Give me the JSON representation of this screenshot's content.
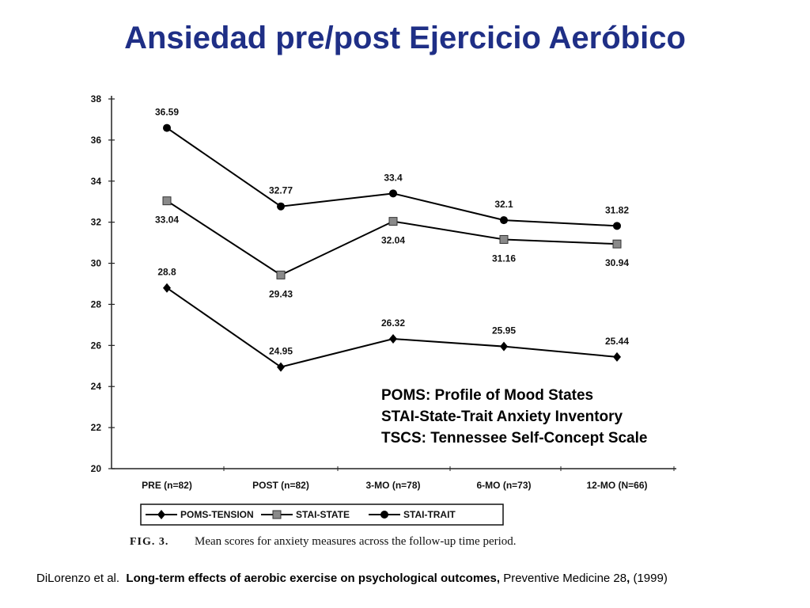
{
  "title": "Ansiedad pre/post Ejercicio Aeróbico",
  "chart_data": {
    "type": "line",
    "categories": [
      "PRE (n=82)",
      "POST (n=82)",
      "3-MO (n=78)",
      "6-MO (n=73)",
      "12-MO (N=66)"
    ],
    "series": [
      {
        "name": "POMS-TENSION",
        "values": [
          28.8,
          24.95,
          26.32,
          25.95,
          25.44
        ],
        "labels": [
          "28.8",
          "24.95",
          "26.32",
          "25.95",
          "25.44"
        ],
        "marker": "diamond"
      },
      {
        "name": "STAI-STATE",
        "values": [
          33.04,
          29.43,
          32.04,
          31.16,
          30.94
        ],
        "labels": [
          "33.04",
          "29.43",
          "32.04",
          "31.16",
          "30.94"
        ],
        "marker": "square"
      },
      {
        "name": "STAI-TRAIT",
        "values": [
          36.59,
          32.77,
          33.4,
          32.1,
          31.82
        ],
        "labels": [
          "36.59",
          "32.77",
          "33.4",
          "32.1",
          "31.82"
        ],
        "marker": "circle"
      }
    ],
    "ylim": [
      20,
      38
    ],
    "yticks": [
      "20",
      "22",
      "24",
      "26",
      "28",
      "30",
      "32",
      "34",
      "36",
      "38"
    ],
    "legend_position": "bottom",
    "caption_label": "FIG. 3.",
    "caption_text": "Mean scores for anxiety measures across the follow-up time period.",
    "colors": {
      "line": "#000000",
      "axis": "#222222"
    }
  },
  "notes": [
    "POMS: Profile of Mood States",
    "STAI-State-Trait Anxiety Inventory",
    "TSCS: Tennessee Self-Concept Scale"
  ],
  "citation": {
    "authors": "DiLorenzo et al.",
    "article": "Long-term effects of aerobic exercise on psychological outcomes,",
    "journal": "Preventive Medicine 28",
    "comma": ",",
    "year": "(1999)"
  }
}
